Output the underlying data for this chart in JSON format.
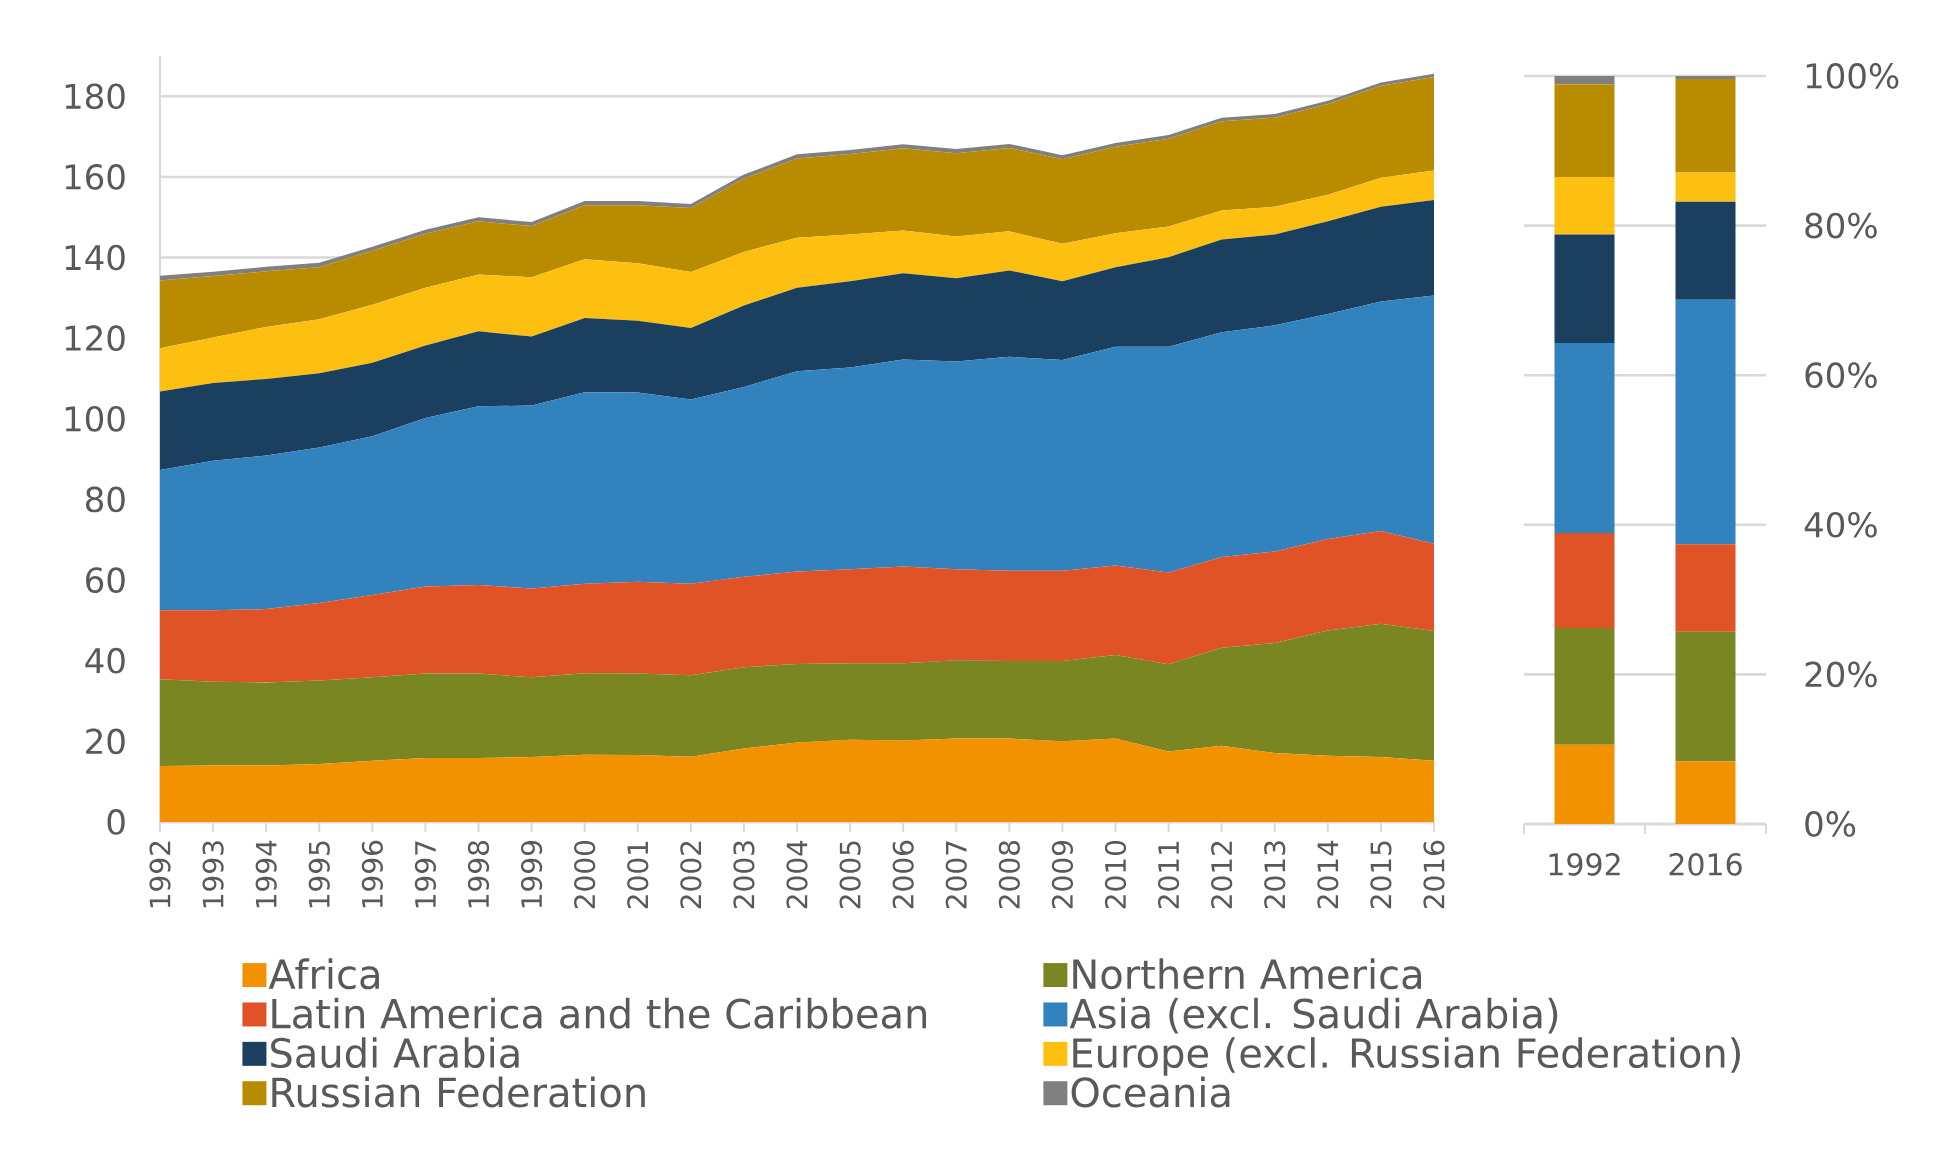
{
  "chart_data": [
    {
      "type": "area",
      "stacked": true,
      "categories": [
        "1992",
        "1993",
        "1994",
        "1995",
        "1996",
        "1997",
        "1998",
        "1999",
        "2000",
        "2001",
        "2002",
        "2003",
        "2004",
        "2005",
        "2006",
        "2007",
        "2008",
        "2009",
        "2010",
        "2011",
        "2012",
        "2013",
        "2014",
        "2015",
        "2016"
      ],
      "series": [
        {
          "name": "Africa",
          "color": "#f39200",
          "values": [
            13.9,
            14.0,
            14.0,
            14.4,
            15.2,
            15.9,
            15.9,
            16.1,
            16.7,
            16.6,
            16.2,
            18.2,
            19.7,
            20.4,
            20.2,
            20.7,
            20.7,
            20.0,
            20.7,
            17.5,
            18.9,
            17.1,
            16.4,
            16.1,
            15.2
          ]
        },
        {
          "name": "Northern America",
          "color": "#7a8621",
          "values": [
            21.5,
            20.8,
            20.6,
            20.7,
            20.7,
            20.9,
            20.9,
            19.8,
            20.2,
            20.2,
            20.2,
            20.2,
            19.5,
            19.0,
            19.2,
            19.4,
            19.2,
            19.9,
            20.7,
            21.6,
            24.3,
            27.3,
            31.1,
            33.1,
            32.2
          ]
        },
        {
          "name": "Latin America and the Caribbean",
          "color": "#e05327",
          "values": [
            17.1,
            17.7,
            18.2,
            19.2,
            20.4,
            21.6,
            22.0,
            22.0,
            22.2,
            22.8,
            22.7,
            22.4,
            22.9,
            23.3,
            24.0,
            22.6,
            22.4,
            22.4,
            22.2,
            22.8,
            22.5,
            22.7,
            22.7,
            23.0,
            21.6
          ]
        },
        {
          "name": "Asia (excl. Saudi Arabia)",
          "color": "#3282be",
          "values": [
            34.8,
            37.1,
            38.1,
            38.6,
            39.4,
            41.8,
            44.3,
            45.4,
            47.5,
            46.9,
            45.7,
            47.1,
            49.7,
            50.0,
            51.3,
            51.5,
            53.1,
            52.3,
            54.3,
            56.0,
            55.8,
            56.1,
            55.8,
            56.9,
            61.6
          ]
        },
        {
          "name": "Saudi Arabia",
          "color": "#1b3f5e",
          "values": [
            19.5,
            19.3,
            19.0,
            18.4,
            18.2,
            18.0,
            18.6,
            17.1,
            18.4,
            17.8,
            17.7,
            20.2,
            20.7,
            21.4,
            21.4,
            20.7,
            21.4,
            19.5,
            19.7,
            22.2,
            23.0,
            22.5,
            23.0,
            23.5,
            23.7
          ]
        },
        {
          "name": "Europe (excl. Russian Federation)",
          "color": "#fdc010",
          "values": [
            10.7,
            11.3,
            12.9,
            13.4,
            14.4,
            14.3,
            14.1,
            14.7,
            14.6,
            14.3,
            13.9,
            13.3,
            12.4,
            11.6,
            10.6,
            10.3,
            9.7,
            9.3,
            8.4,
            7.6,
            7.2,
            6.9,
            6.6,
            7.2,
            7.3
          ]
        },
        {
          "name": "Russian Federation",
          "color": "#b88b00",
          "values": [
            16.8,
            15.2,
            13.8,
            12.9,
            13.4,
            13.4,
            13.2,
            12.7,
            13.4,
            14.4,
            15.9,
            18.2,
            19.7,
            20.0,
            20.4,
            20.7,
            20.7,
            21.0,
            21.5,
            21.8,
            22.1,
            22.1,
            22.5,
            22.8,
            23.2
          ]
        },
        {
          "name": "Oceania",
          "color": "#808080",
          "values": [
            1.2,
            1.1,
            1.1,
            1.1,
            1.0,
            1.0,
            1.0,
            1.0,
            1.0,
            1.0,
            1.0,
            1.0,
            1.0,
            1.0,
            1.0,
            1.0,
            1.0,
            1.0,
            0.9,
            0.9,
            0.9,
            0.9,
            0.8,
            0.8,
            0.8
          ]
        }
      ],
      "ylim": [
        0,
        190
      ],
      "yticks": [
        0,
        20,
        40,
        60,
        80,
        100,
        120,
        140,
        160,
        180
      ],
      "grid": "y",
      "legend": "bottom"
    },
    {
      "type": "bar",
      "stacked": true,
      "categories": [
        "1992",
        "2016"
      ],
      "series": [
        {
          "color": "#f39200",
          "values": [
            10.6,
            8.4
          ]
        },
        {
          "color": "#7a8621",
          "values": [
            15.6,
            17.3
          ]
        },
        {
          "color": "#e05327",
          "values": [
            12.7,
            11.7
          ]
        },
        {
          "color": "#3282be",
          "values": [
            25.4,
            32.7
          ]
        },
        {
          "color": "#1b3f5e",
          "values": [
            14.5,
            13.1
          ]
        },
        {
          "color": "#fdc010",
          "values": [
            7.7,
            3.9
          ]
        },
        {
          "color": "#b88b00",
          "values": [
            12.4,
            12.5
          ]
        },
        {
          "color": "#808080",
          "values": [
            1.1,
            0.4
          ]
        }
      ],
      "ylim": [
        0,
        100
      ],
      "yticks": [
        {
          "value": 0,
          "label": "0%"
        },
        {
          "value": 20,
          "label": "20%"
        },
        {
          "value": 40,
          "label": "40%"
        },
        {
          "value": 60,
          "label": "60%"
        },
        {
          "value": 80,
          "label": "80%"
        },
        {
          "value": 100,
          "label": "100%"
        }
      ],
      "grid": "y"
    }
  ]
}
